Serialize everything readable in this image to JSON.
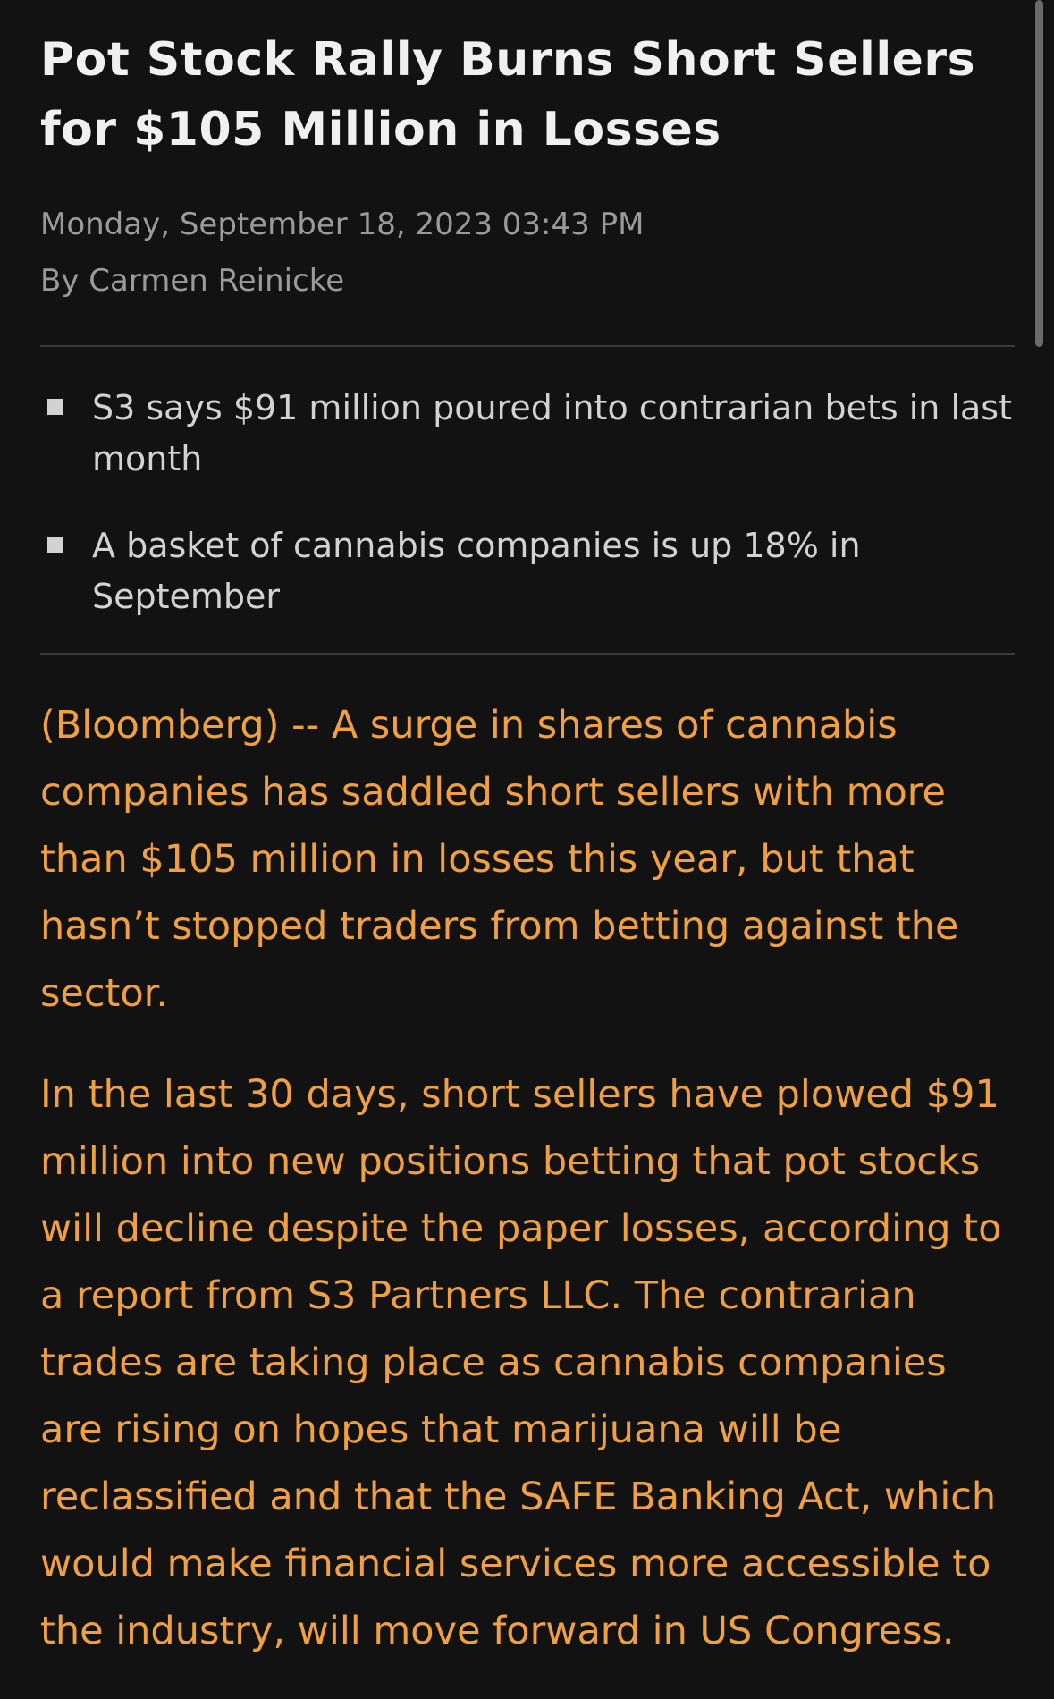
{
  "article": {
    "headline": "Pot Stock Rally Burns Short Sellers for $105 Million in Losses",
    "date": "Monday, September 18, 2023 03:43 PM",
    "byline": "By Carmen Reinicke",
    "bullets": [
      "S3 says $91 million poured into contrarian bets in last month",
      "A basket of cannabis companies is up 18% in September"
    ],
    "paragraphs": [
      "(Bloomberg) -- A surge in shares of cannabis companies has saddled short sellers with more than $105 million in losses this year, but that hasn’t stopped traders from betting against the sector.",
      "In the last 30 days, short sellers have plowed $91 million into new positions betting that pot stocks will decline despite the paper losses, according to a report from S3 Partners LLC. The contrarian trades are taking place as cannabis companies are rising on hopes that marijuana will be reclassified and that the SAFE Banking Act, which would make financial services more accessible to the industry, will move forward in US Congress."
    ]
  },
  "colors": {
    "background": "#121212",
    "headline": "#f0f0f0",
    "meta": "#9a9a9a",
    "bullet_text": "#d2d2d2",
    "body_text": "#f0a040",
    "divider": "#3a3a3a"
  }
}
